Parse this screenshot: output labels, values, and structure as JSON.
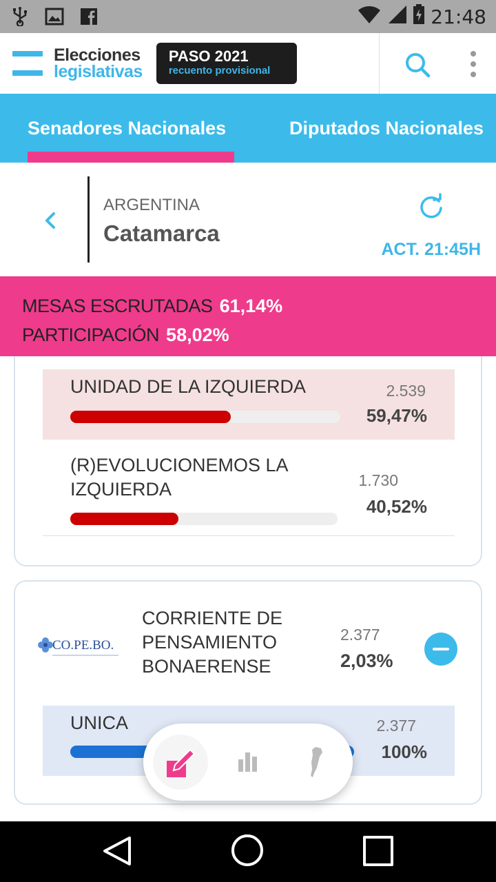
{
  "status_bar": {
    "time": "21:48",
    "icons": [
      "usb-icon",
      "image-icon",
      "facebook-icon",
      "wifi-icon",
      "signal-icon",
      "battery-icon"
    ]
  },
  "header": {
    "logo_line1": "Elecciones",
    "logo_line2": "legislativas",
    "badge_title": "PASO 2021",
    "badge_subtitle": "recuento provisional",
    "accent_color": "#3fb6e8"
  },
  "tabs": [
    {
      "label": "Senadores Nacionales",
      "active": true
    },
    {
      "label": "Diputados Nacionales",
      "active": false
    }
  ],
  "location": {
    "country": "ARGENTINA",
    "province": "Catamarca",
    "update_label": "ACT. 21:45H"
  },
  "stats": {
    "mesas_label": "MESAS ESCRUTADAS",
    "mesas_value": "61,14%",
    "participacion_label": "PARTICIPACIÓN",
    "participacion_value": "58,02%",
    "banner_color": "#ef3b8c"
  },
  "card1": {
    "lists": [
      {
        "name": "UNIDAD DE LA IZQUIERDA",
        "votes": "2.539",
        "percent": "59,47%",
        "fraction": 0.5947,
        "highlighted": true
      },
      {
        "name": "(R)EVOLUCIONEMOS LA IZQUIERDA",
        "votes": "1.730",
        "percent": "40,52%",
        "fraction": 0.4052,
        "highlighted": false
      }
    ],
    "bar_color": "#cc0000"
  },
  "card2": {
    "party_logo_text": "CO.PE.BO.",
    "party_name": "CORRIENTE DE PENSAMIENTO BONAERENSE",
    "party_votes": "2.377",
    "party_percent": "2,03%",
    "lists": [
      {
        "name": "UNICA",
        "votes": "2.377",
        "percent": "100%",
        "fraction": 1.0
      }
    ],
    "bar_color": "#1b72d4"
  },
  "floating_nav": {
    "items": [
      "vote-icon",
      "bar-chart-icon",
      "argentina-map-icon"
    ],
    "active_color": "#ef3b8c"
  }
}
